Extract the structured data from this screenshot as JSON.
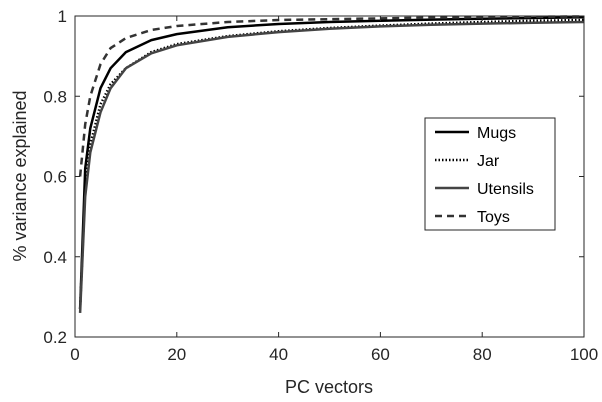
{
  "chart_data": {
    "type": "line",
    "title": "",
    "xlabel": "PC vectors",
    "ylabel": "% variance explained",
    "xlim": [
      0,
      100
    ],
    "ylim": [
      0.2,
      1
    ],
    "xticks": [
      0,
      20,
      40,
      60,
      80,
      100
    ],
    "yticks": [
      0.2,
      0.4,
      0.6,
      0.8,
      1
    ],
    "xtick_labels": [
      "0",
      "20",
      "40",
      "60",
      "80",
      "100"
    ],
    "ytick_labels": [
      "0.2",
      "0.4",
      "0.6",
      "0.8",
      "1"
    ],
    "grid": false,
    "legend": {
      "placement": "right",
      "boxed": true
    },
    "series": [
      {
        "name": "Mugs",
        "color": "#000000",
        "style": "solid",
        "x": [
          1,
          2,
          3,
          5,
          7,
          10,
          15,
          20,
          30,
          40,
          50,
          60,
          70,
          80,
          90,
          100
        ],
        "y": [
          0.27,
          0.62,
          0.72,
          0.82,
          0.87,
          0.91,
          0.94,
          0.955,
          0.972,
          0.98,
          0.985,
          0.988,
          0.991,
          0.993,
          0.995,
          0.997
        ]
      },
      {
        "name": "Jar",
        "color": "#000000",
        "style": "dotted",
        "x": [
          1,
          2,
          3,
          5,
          7,
          10,
          15,
          20,
          30,
          40,
          50,
          60,
          70,
          80,
          90,
          100
        ],
        "y": [
          0.27,
          0.57,
          0.68,
          0.78,
          0.83,
          0.87,
          0.91,
          0.93,
          0.95,
          0.962,
          0.97,
          0.976,
          0.981,
          0.985,
          0.988,
          0.99
        ]
      },
      {
        "name": "Utensils",
        "color": "#444444",
        "style": "solid",
        "x": [
          1,
          2,
          3,
          5,
          7,
          10,
          15,
          20,
          30,
          40,
          50,
          60,
          70,
          80,
          90,
          100
        ],
        "y": [
          0.26,
          0.55,
          0.66,
          0.76,
          0.82,
          0.87,
          0.907,
          0.927,
          0.948,
          0.96,
          0.968,
          0.974,
          0.978,
          0.981,
          0.983,
          0.985
        ]
      },
      {
        "name": "Toys",
        "color": "#333333",
        "style": "dashed",
        "x": [
          1,
          2,
          3,
          5,
          7,
          10,
          15,
          20,
          30,
          40,
          50,
          60,
          70,
          80,
          90,
          100
        ],
        "y": [
          0.6,
          0.73,
          0.8,
          0.88,
          0.92,
          0.945,
          0.965,
          0.975,
          0.985,
          0.99,
          0.992,
          0.994,
          0.996,
          0.997,
          0.998,
          0.999
        ]
      }
    ]
  }
}
